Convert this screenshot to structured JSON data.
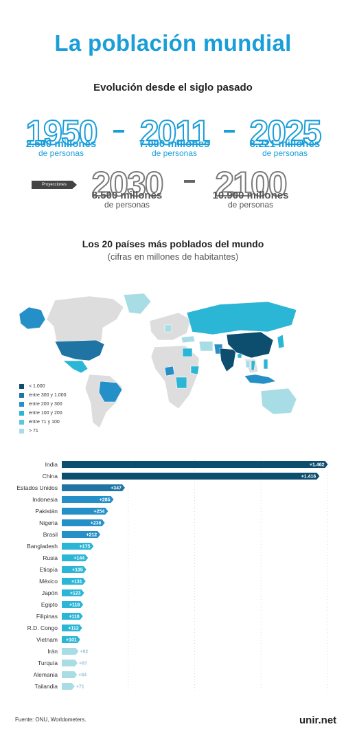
{
  "title": "La población mundial",
  "subtitle": "Evolución desde el siglo pasado",
  "timeline": [
    {
      "year": "1950",
      "amount": "2.500 millones",
      "unit": "de personas"
    },
    {
      "year": "2011",
      "amount": "7.000 millones",
      "unit": "de personas"
    },
    {
      "year": "2025",
      "amount": "8.221 millones",
      "unit": "de personas"
    },
    {
      "year": "2030",
      "amount": "8.500 millones",
      "unit": "de personas"
    },
    {
      "year": "2100",
      "amount": "10.900 millones",
      "unit": "de personas"
    }
  ],
  "projections_label": "Proyecciones",
  "map": {
    "title": "Los 20 países más poblados del mundo",
    "subtitle": "(cifras en millones de habitantes)",
    "legend": [
      {
        "label": "< 1.000",
        "color": "#0d4d6e"
      },
      {
        "label": "entre 300 y 1.000",
        "color": "#1f74a3"
      },
      {
        "label": "entre 200 y 300",
        "color": "#2590c8"
      },
      {
        "label": "entre 100 y 200",
        "color": "#2bb6d6"
      },
      {
        "label": "entre 71 y 100",
        "color": "#5ac8dc"
      },
      {
        "label": "> 71",
        "color": "#a8dde6"
      }
    ],
    "base_color": "#dddddd"
  },
  "chart_data": {
    "type": "bar",
    "orientation": "horizontal",
    "categories": [
      "India",
      "China",
      "Estados Unidos",
      "Indonesia",
      "Pakistán",
      "Nigeria",
      "Brasil",
      "Bangladesh",
      "Rusia",
      "Etiopía",
      "México",
      "Japón",
      "Egipto",
      "Filipinas",
      "R.D. Congo",
      "Vietnam",
      "Irán",
      "Turquía",
      "Alemania",
      "Tailandia"
    ],
    "values": [
      1462,
      1416,
      347,
      285,
      254,
      236,
      212,
      175,
      144,
      135,
      131,
      123,
      118,
      116,
      112,
      101,
      92,
      87,
      84,
      71
    ],
    "value_labels": [
      "+1.462",
      "+1.416",
      "+347",
      "+285",
      "+254",
      "+236",
      "+212",
      "+175",
      "+144",
      "+135",
      "+131",
      "+123",
      "+118",
      "+116",
      "+112",
      "+101",
      "+92",
      "+87",
      "+84",
      "+71"
    ],
    "colors": [
      "#0d4d6e",
      "#0d4d6e",
      "#1f74a3",
      "#2590c8",
      "#2590c8",
      "#2590c8",
      "#2590c8",
      "#2bb6d6",
      "#2bb6d6",
      "#2bb6d6",
      "#2bb6d6",
      "#2bb6d6",
      "#2bb6d6",
      "#2bb6d6",
      "#2bb6d6",
      "#2bb6d6",
      "#a8dde6",
      "#a8dde6",
      "#a8dde6",
      "#a8dde6"
    ],
    "xlim": [
      0,
      1500
    ],
    "grid": "vertical-dotted"
  },
  "source": "Fuente: ONU, Worldometers.",
  "logo": "unir.net"
}
